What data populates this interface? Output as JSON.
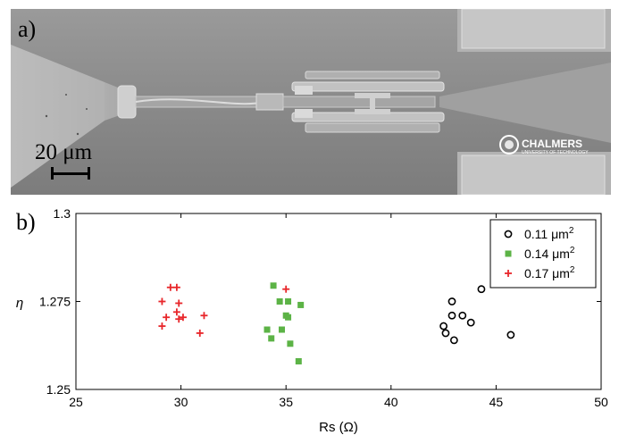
{
  "panel_a": {
    "label": "a)",
    "scale_bar_text": "20 μm",
    "logo": {
      "name": "CHALMERS",
      "subtitle": "UNIVERSITY OF TECHNOLOGY"
    },
    "colors": {
      "background": "#8d8d8d",
      "structure": "#bdbdbd"
    }
  },
  "panel_b": {
    "label": "b)"
  },
  "chart_data": {
    "type": "scatter",
    "xlabel": "Rs (Ω)",
    "ylabel": "η",
    "xlim": [
      25,
      50
    ],
    "ylim": [
      1.25,
      1.3
    ],
    "xticks": [
      25,
      30,
      35,
      40,
      45,
      50
    ],
    "xtick_labels": [
      "25",
      "30",
      "35",
      "40",
      "45",
      "50"
    ],
    "yticks": [
      1.25,
      1.275,
      1.3
    ],
    "ytick_labels": [
      "1.25",
      "1.275",
      "1.3"
    ],
    "grid": false,
    "legend_position": "top-right",
    "series": [
      {
        "name": "0.11 μm²",
        "label_text": "0.11 μm",
        "label_sup": "2",
        "marker": "circle-open",
        "color": "#000000",
        "points": [
          {
            "x": 42.9,
            "y": 1.275
          },
          {
            "x": 44.3,
            "y": 1.2785
          },
          {
            "x": 42.9,
            "y": 1.271
          },
          {
            "x": 43.4,
            "y": 1.271
          },
          {
            "x": 43.8,
            "y": 1.269
          },
          {
            "x": 42.5,
            "y": 1.268
          },
          {
            "x": 42.6,
            "y": 1.266
          },
          {
            "x": 43.0,
            "y": 1.264
          },
          {
            "x": 45.7,
            "y": 1.2655
          }
        ]
      },
      {
        "name": "0.14 μm²",
        "label_text": "0.14 μm",
        "label_sup": "2",
        "marker": "square-filled",
        "color": "#5cb346",
        "points": [
          {
            "x": 34.4,
            "y": 1.2795
          },
          {
            "x": 34.7,
            "y": 1.275
          },
          {
            "x": 35.1,
            "y": 1.275
          },
          {
            "x": 35.7,
            "y": 1.274
          },
          {
            "x": 35.0,
            "y": 1.271
          },
          {
            "x": 35.1,
            "y": 1.2705
          },
          {
            "x": 34.1,
            "y": 1.267
          },
          {
            "x": 34.8,
            "y": 1.267
          },
          {
            "x": 34.3,
            "y": 1.2645
          },
          {
            "x": 35.2,
            "y": 1.263
          },
          {
            "x": 35.6,
            "y": 1.258
          }
        ]
      },
      {
        "name": "0.17 μm²",
        "label_text": "0.17 μm",
        "label_sup": "2",
        "marker": "plus",
        "color": "#e8262a",
        "points": [
          {
            "x": 29.5,
            "y": 1.279
          },
          {
            "x": 29.8,
            "y": 1.279
          },
          {
            "x": 35.0,
            "y": 1.2785
          },
          {
            "x": 29.1,
            "y": 1.275
          },
          {
            "x": 29.9,
            "y": 1.2745
          },
          {
            "x": 29.8,
            "y": 1.272
          },
          {
            "x": 29.3,
            "y": 1.2705
          },
          {
            "x": 30.1,
            "y": 1.2705
          },
          {
            "x": 29.9,
            "y": 1.27
          },
          {
            "x": 31.1,
            "y": 1.271
          },
          {
            "x": 29.1,
            "y": 1.268
          },
          {
            "x": 30.9,
            "y": 1.266
          }
        ]
      }
    ]
  }
}
